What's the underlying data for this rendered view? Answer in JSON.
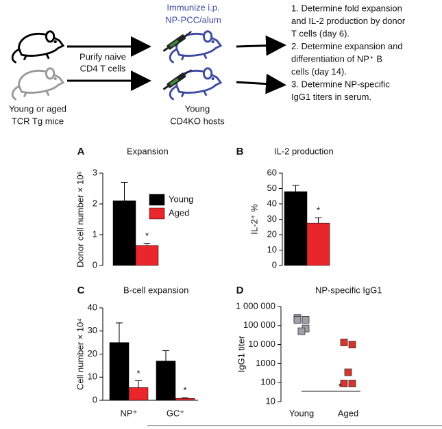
{
  "diagram": {
    "donor_label": [
      "Young or aged",
      "TCR Tg mice"
    ],
    "purify_label": [
      "Purify naive",
      "CD4 T cells"
    ],
    "immunize_label": [
      "Immunize i.p.",
      "NP-PCC/alum"
    ],
    "host_label": [
      "Young",
      "CD4KO hosts"
    ],
    "steps": [
      "1. Determine fold expansion",
      "and IL-2 production by donor",
      "T cells (day 6).",
      "2. Determine expansion and",
      "differentiation of NP⁺ B",
      "cells (day 14).",
      "3. Determine NP-specific",
      "IgG1 titers in serum."
    ]
  },
  "chart_data": [
    {
      "type": "bar",
      "panel": "A",
      "title": "Expansion",
      "ylabel": "Donor cell number × 10⁶",
      "ylim": [
        0,
        3
      ],
      "yticks": [
        0,
        1,
        2,
        3
      ],
      "legend": true,
      "significance": "*",
      "series": [
        {
          "name": "Young",
          "color": "#000000",
          "values": [
            2.1
          ],
          "errors": [
            0.6
          ]
        },
        {
          "name": "Aged",
          "color": "#e8262b",
          "values": [
            0.65
          ],
          "errors": [
            0.07
          ]
        }
      ]
    },
    {
      "type": "bar",
      "panel": "B",
      "title": "IL-2 production",
      "ylabel": "IL-2⁺ %",
      "ylim": [
        0,
        60
      ],
      "yticks": [
        0,
        10,
        20,
        30,
        40,
        50,
        60
      ],
      "legend": false,
      "significance": "*",
      "series": [
        {
          "color": "#000000",
          "values": [
            48
          ],
          "errors": [
            4
          ]
        },
        {
          "color": "#e8262b",
          "values": [
            27.5
          ],
          "errors": [
            3.5
          ]
        }
      ]
    },
    {
      "type": "bar",
      "panel": "C",
      "title": "B-cell expansion",
      "ylabel": "Cell number × 10⁴",
      "categories": [
        "NP⁺",
        "GC⁺"
      ],
      "ylim": [
        0,
        40
      ],
      "yticks": [
        0,
        10,
        20,
        30,
        40
      ],
      "legend": false,
      "significance": "*",
      "series": [
        {
          "color": "#000000",
          "values": [
            25,
            17
          ],
          "errors": [
            8.5,
            4.5
          ]
        },
        {
          "color": "#e8262b",
          "values": [
            5.5,
            0.8
          ],
          "errors": [
            3,
            0.3
          ]
        }
      ]
    },
    {
      "type": "scatter",
      "panel": "D",
      "title": "NP-specific IgG1",
      "ylabel": "IgG1 titer",
      "log_scale": true,
      "categories": [
        "Young",
        "Aged"
      ],
      "ylim": [
        10,
        1000000
      ],
      "yticks": [
        10,
        100,
        1000,
        {
          "value": 10000,
          "label": "10 000"
        },
        {
          "value": 100000,
          "label": "100 000"
        },
        {
          "value": 1000000,
          "label": "1 000 000"
        }
      ],
      "limit": 35,
      "significance": "*",
      "series": [
        {
          "color": "#a0a0a8",
          "values": [
            250000,
            200000,
            200000,
            70000,
            50000
          ]
        },
        {
          "color": "#d8342c",
          "values": [
            13000,
            10000,
            350,
            90,
            90
          ]
        }
      ]
    }
  ]
}
